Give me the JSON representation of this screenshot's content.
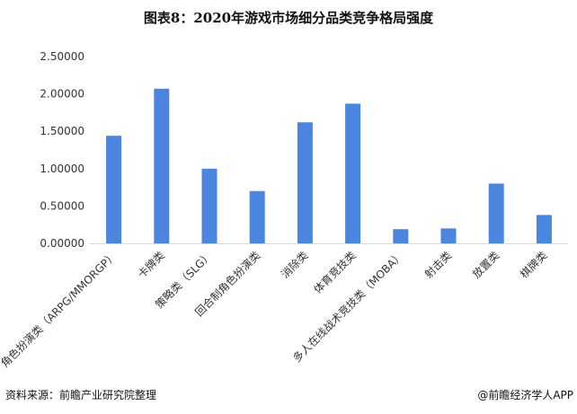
{
  "title": "图表8：2020年游戏市场细分品类竞争格局强度",
  "chart_data": {
    "type": "bar",
    "categories": [
      "角色扮演类（ARPG/MMORGP）",
      "卡牌类",
      "策略类（SLG）",
      "回合制角色扮演类",
      "消除类",
      "体育竞技类",
      "多人在线战术竞技类（MOBA）",
      "射击类",
      "放置类",
      "棋牌类"
    ],
    "values": [
      1.44,
      2.07,
      1.0,
      0.7,
      1.62,
      1.87,
      0.19,
      0.2,
      0.8,
      0.38
    ],
    "ylim": [
      0,
      2.5
    ],
    "yticks": [
      0,
      0.5,
      1.0,
      1.5,
      2.0,
      2.5
    ],
    "ytick_labels": [
      "0.00000",
      "0.50000",
      "1.00000",
      "1.50000",
      "2.00000",
      "2.50000"
    ],
    "xlabel": "",
    "ylabel": "",
    "grid": false,
    "bar_color": "#4a86e0"
  },
  "footer": {
    "source": "资料来源：前瞻产业研究院整理",
    "credit": "@前瞻经济学人APP"
  }
}
